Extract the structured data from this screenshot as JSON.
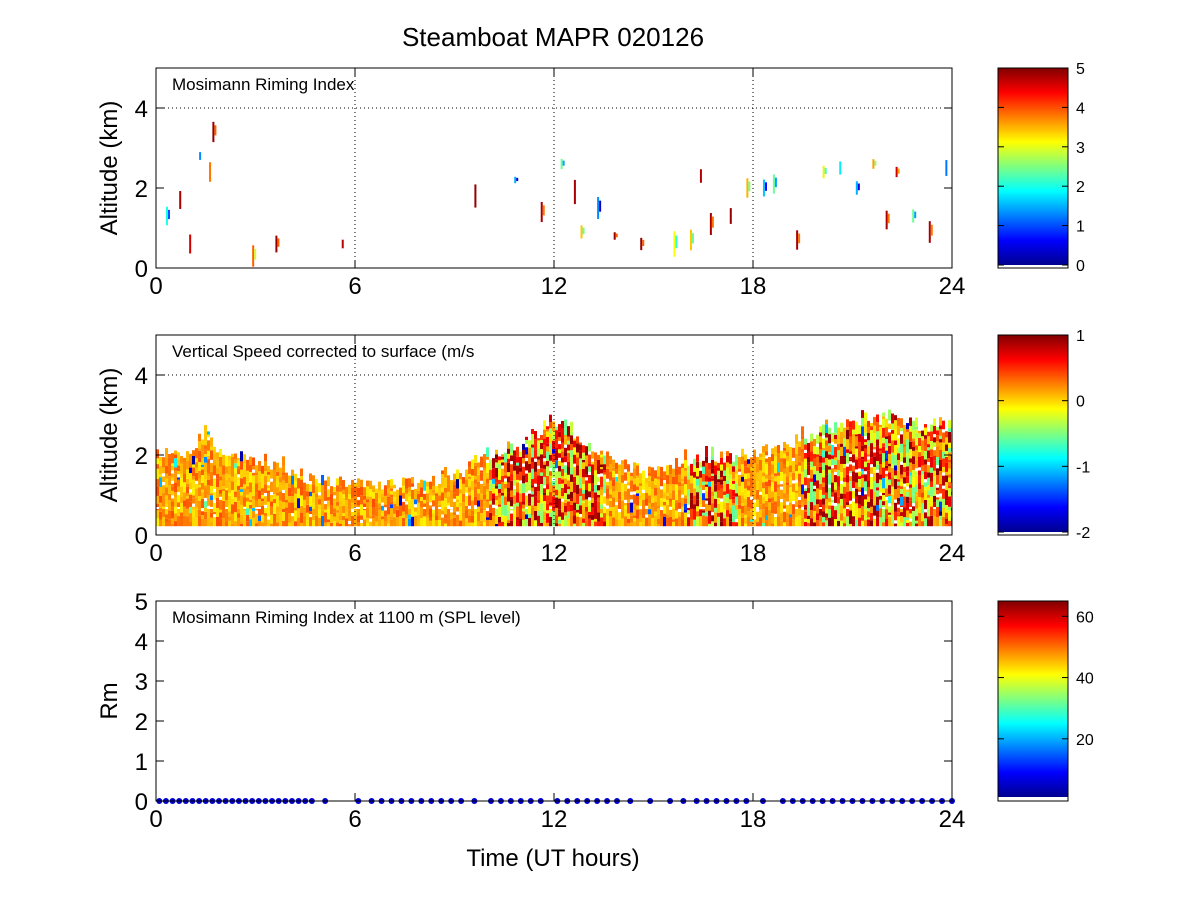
{
  "title": "Steamboat MAPR 020126",
  "xlabel": "Time (UT hours)",
  "colors": {
    "background": "#ffffff",
    "axis": "#000000",
    "grid": "#000000",
    "marker_blue": "#0000cc"
  },
  "chart_data": [
    {
      "type": "heatmap",
      "panel": "top",
      "annotation": "Mosimann Riming Index",
      "ylabel": "Altitude (km)",
      "xlim": [
        0,
        24
      ],
      "ylim": [
        0,
        5
      ],
      "xticks": [
        0,
        6,
        12,
        18,
        24
      ],
      "yticks": [
        0,
        2,
        4
      ],
      "grid": "dotted at x=6,12,18,24 and y=4",
      "colorbar": {
        "range": [
          0,
          5
        ],
        "ticks": [
          0,
          1,
          2,
          3,
          4,
          5
        ]
      },
      "samples": [
        {
          "t": 0.3,
          "alt": 1.3,
          "v": 2.0
        },
        {
          "t": 0.7,
          "alt": 1.7,
          "v": 4.8
        },
        {
          "t": 1.0,
          "alt": 0.6,
          "v": 4.6
        },
        {
          "t": 1.3,
          "alt": 2.8,
          "v": 1.3
        },
        {
          "t": 1.6,
          "alt": 2.4,
          "v": 3.8
        },
        {
          "t": 1.7,
          "alt": 3.4,
          "v": 4.9
        },
        {
          "t": 2.9,
          "alt": 0.3,
          "v": 3.9
        },
        {
          "t": 3.6,
          "alt": 0.6,
          "v": 4.9
        },
        {
          "t": 5.6,
          "alt": 0.6,
          "v": 4.7
        },
        {
          "t": 9.6,
          "alt": 1.8,
          "v": 4.9
        },
        {
          "t": 10.8,
          "alt": 2.2,
          "v": 1.5
        },
        {
          "t": 11.6,
          "alt": 1.4,
          "v": 4.8
        },
        {
          "t": 12.2,
          "alt": 2.6,
          "v": 2.4
        },
        {
          "t": 12.6,
          "alt": 1.9,
          "v": 4.8
        },
        {
          "t": 12.8,
          "alt": 0.9,
          "v": 3.4
        },
        {
          "t": 13.3,
          "alt": 1.5,
          "v": 1.3
        },
        {
          "t": 13.8,
          "alt": 0.8,
          "v": 4.9
        },
        {
          "t": 14.6,
          "alt": 0.6,
          "v": 4.9
        },
        {
          "t": 15.6,
          "alt": 0.6,
          "v": 3.1
        },
        {
          "t": 16.1,
          "alt": 0.7,
          "v": 3.4
        },
        {
          "t": 16.4,
          "alt": 2.3,
          "v": 4.7
        },
        {
          "t": 16.7,
          "alt": 1.1,
          "v": 4.8
        },
        {
          "t": 17.3,
          "alt": 1.3,
          "v": 4.9
        },
        {
          "t": 17.8,
          "alt": 2.0,
          "v": 3.5
        },
        {
          "t": 18.3,
          "alt": 2.0,
          "v": 1.6
        },
        {
          "t": 18.6,
          "alt": 2.1,
          "v": 2.4
        },
        {
          "t": 19.3,
          "alt": 0.7,
          "v": 4.8
        },
        {
          "t": 20.1,
          "alt": 2.4,
          "v": 3.2
        },
        {
          "t": 20.6,
          "alt": 2.5,
          "v": 1.8
        },
        {
          "t": 21.1,
          "alt": 2.0,
          "v": 1.5
        },
        {
          "t": 21.6,
          "alt": 2.6,
          "v": 3.6
        },
        {
          "t": 22.0,
          "alt": 1.2,
          "v": 4.8
        },
        {
          "t": 22.3,
          "alt": 2.4,
          "v": 4.6
        },
        {
          "t": 22.8,
          "alt": 1.3,
          "v": 2.4
        },
        {
          "t": 23.3,
          "alt": 0.9,
          "v": 4.8
        },
        {
          "t": 23.8,
          "alt": 2.5,
          "v": 1.2
        }
      ]
    },
    {
      "type": "heatmap",
      "panel": "middle",
      "annotation": "Vertical Speed corrected to surface (m/s",
      "ylabel": "Altitude (km)",
      "xlim": [
        0,
        24
      ],
      "ylim": [
        0,
        5
      ],
      "xticks": [
        0,
        6,
        12,
        18,
        24
      ],
      "yticks": [
        0,
        2,
        4
      ],
      "grid": "dotted at x=6,12,18,24 and y=4",
      "colorbar": {
        "range": [
          -2,
          1
        ],
        "ticks": [
          -2,
          -1,
          0,
          1
        ]
      },
      "echo_top_km": [
        {
          "t": 0,
          "top": 2.0
        },
        {
          "t": 1,
          "top": 1.9
        },
        {
          "t": 1.5,
          "top": 2.6
        },
        {
          "t": 2,
          "top": 1.9
        },
        {
          "t": 3,
          "top": 1.8
        },
        {
          "t": 4,
          "top": 1.5
        },
        {
          "t": 5,
          "top": 1.3
        },
        {
          "t": 6,
          "top": 1.3
        },
        {
          "t": 7,
          "top": 1.2
        },
        {
          "t": 8,
          "top": 1.3
        },
        {
          "t": 9,
          "top": 1.5
        },
        {
          "t": 10,
          "top": 1.9
        },
        {
          "t": 11,
          "top": 2.2
        },
        {
          "t": 12,
          "top": 2.9
        },
        {
          "t": 13,
          "top": 2.1
        },
        {
          "t": 14,
          "top": 1.7
        },
        {
          "t": 15,
          "top": 1.6
        },
        {
          "t": 16,
          "top": 1.8
        },
        {
          "t": 17,
          "top": 1.9
        },
        {
          "t": 18,
          "top": 1.9
        },
        {
          "t": 19,
          "top": 2.2
        },
        {
          "t": 20,
          "top": 2.6
        },
        {
          "t": 21,
          "top": 2.8
        },
        {
          "t": 22,
          "top": 2.9
        },
        {
          "t": 23,
          "top": 2.7
        },
        {
          "t": 24,
          "top": 2.6
        }
      ],
      "dominant_value_range_ms": [
        -0.5,
        0.8
      ]
    },
    {
      "type": "scatter",
      "panel": "bottom",
      "annotation": "Mosimann Riming Index at 1100 m (SPL level)",
      "ylabel": "Rm",
      "xlim": [
        0,
        24
      ],
      "ylim": [
        0,
        5
      ],
      "xticks": [
        0,
        6,
        12,
        18,
        24
      ],
      "yticks": [
        0,
        1,
        2,
        3,
        4,
        5
      ],
      "colorbar": {
        "range": [
          1,
          65
        ],
        "ticks": [
          20,
          40,
          60
        ]
      },
      "series": [
        {
          "name": "Rm at 1100 m",
          "y_value": 0,
          "x": [
            0.1,
            0.3,
            0.5,
            0.7,
            0.9,
            1.1,
            1.3,
            1.5,
            1.7,
            1.9,
            2.1,
            2.3,
            2.5,
            2.7,
            2.9,
            3.1,
            3.3,
            3.5,
            3.7,
            3.9,
            4.1,
            4.3,
            4.5,
            4.7,
            5.1,
            6.1,
            6.5,
            6.8,
            7.1,
            7.4,
            7.7,
            8.0,
            8.3,
            8.6,
            8.9,
            9.2,
            9.6,
            10.1,
            10.4,
            10.7,
            11.0,
            11.3,
            11.6,
            12.1,
            12.4,
            12.7,
            13.0,
            13.3,
            13.6,
            13.9,
            14.3,
            14.9,
            15.5,
            15.9,
            16.3,
            16.6,
            16.9,
            17.2,
            17.5,
            17.8,
            18.3,
            18.9,
            19.2,
            19.5,
            19.8,
            20.1,
            20.4,
            20.7,
            21.0,
            21.3,
            21.6,
            21.9,
            22.2,
            22.5,
            22.8,
            23.1,
            23.4,
            23.7,
            24.0
          ]
        }
      ]
    }
  ]
}
